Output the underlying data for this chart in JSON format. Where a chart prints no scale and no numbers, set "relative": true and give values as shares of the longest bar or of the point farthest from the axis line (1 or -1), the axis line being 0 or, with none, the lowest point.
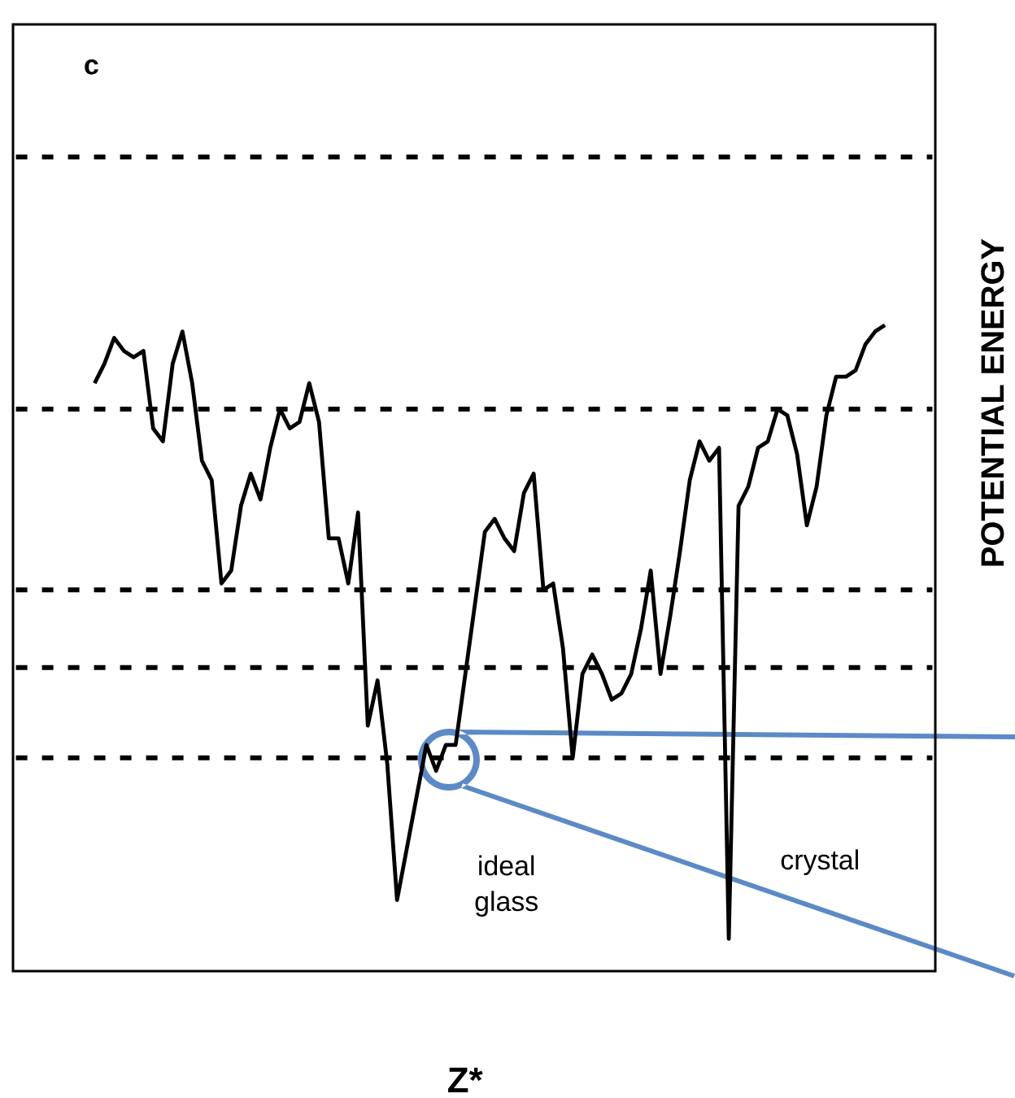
{
  "chart_data": {
    "type": "line",
    "relative": true,
    "xlabel": "Z*",
    "ylabel": "POTENTIAL ENERGY",
    "line_style": "solid",
    "categories": [
      null,
      null,
      null,
      null,
      null,
      null,
      null,
      null,
      null,
      null,
      null,
      null,
      null,
      null,
      null,
      null,
      null,
      null,
      null,
      null,
      null,
      null,
      null,
      null,
      null,
      null,
      null,
      null,
      null,
      null,
      null,
      null,
      null,
      null,
      null,
      null,
      null,
      null,
      null,
      null,
      null,
      null,
      null,
      null,
      null,
      null,
      null,
      null,
      null,
      null,
      null,
      null,
      null,
      null,
      null,
      null,
      null,
      null,
      null,
      null,
      null,
      null,
      null,
      null,
      null,
      null,
      null,
      null,
      null,
      null,
      null,
      null,
      null,
      null,
      null,
      null,
      null,
      null,
      null,
      null,
      null,
      null
    ],
    "series": [
      {
        "color": "#000000",
        "values": [
          0.91,
          0.94,
          0.98,
          0.96,
          0.95,
          0.96,
          0.84,
          0.82,
          0.94,
          0.99,
          0.91,
          0.79,
          0.76,
          0.6,
          0.62,
          0.72,
          0.77,
          0.73,
          0.81,
          0.87,
          0.84,
          0.85,
          0.91,
          0.85,
          0.67,
          0.67,
          0.6,
          0.71,
          0.38,
          0.45,
          0.32,
          0.11,
          0.19,
          0.27,
          0.35,
          0.31,
          0.35,
          0.35,
          0.46,
          0.57,
          0.68,
          0.7,
          0.67,
          0.65,
          0.74,
          0.77,
          0.59,
          0.6,
          0.5,
          0.33,
          0.46,
          0.49,
          0.46,
          0.42,
          0.43,
          0.46,
          0.53,
          0.62,
          0.46,
          0.55,
          0.65,
          0.76,
          0.82,
          0.79,
          0.81,
          0.05,
          0.72,
          0.75,
          0.81,
          0.82,
          0.87,
          0.86,
          0.8,
          0.69,
          0.75,
          0.86,
          0.92,
          0.92,
          0.93,
          0.97,
          0.99,
          1.0
        ]
      }
    ],
    "ref_lines": [
      {
        "axis": "y",
        "value": 1.26,
        "line_style": "dashed",
        "color": "#000000"
      },
      {
        "axis": "y",
        "value": 0.87,
        "line_style": "dashed",
        "color": "#000000"
      },
      {
        "axis": "y",
        "value": 0.59,
        "line_style": "dashed",
        "color": "#000000"
      },
      {
        "axis": "y",
        "value": 0.47,
        "line_style": "dashed",
        "color": "#000000"
      },
      {
        "axis": "y",
        "value": 0.33,
        "line_style": "dashed",
        "color": "#000000"
      }
    ],
    "annotations": [
      "c",
      "ideal glass",
      "crystal"
    ]
  }
}
